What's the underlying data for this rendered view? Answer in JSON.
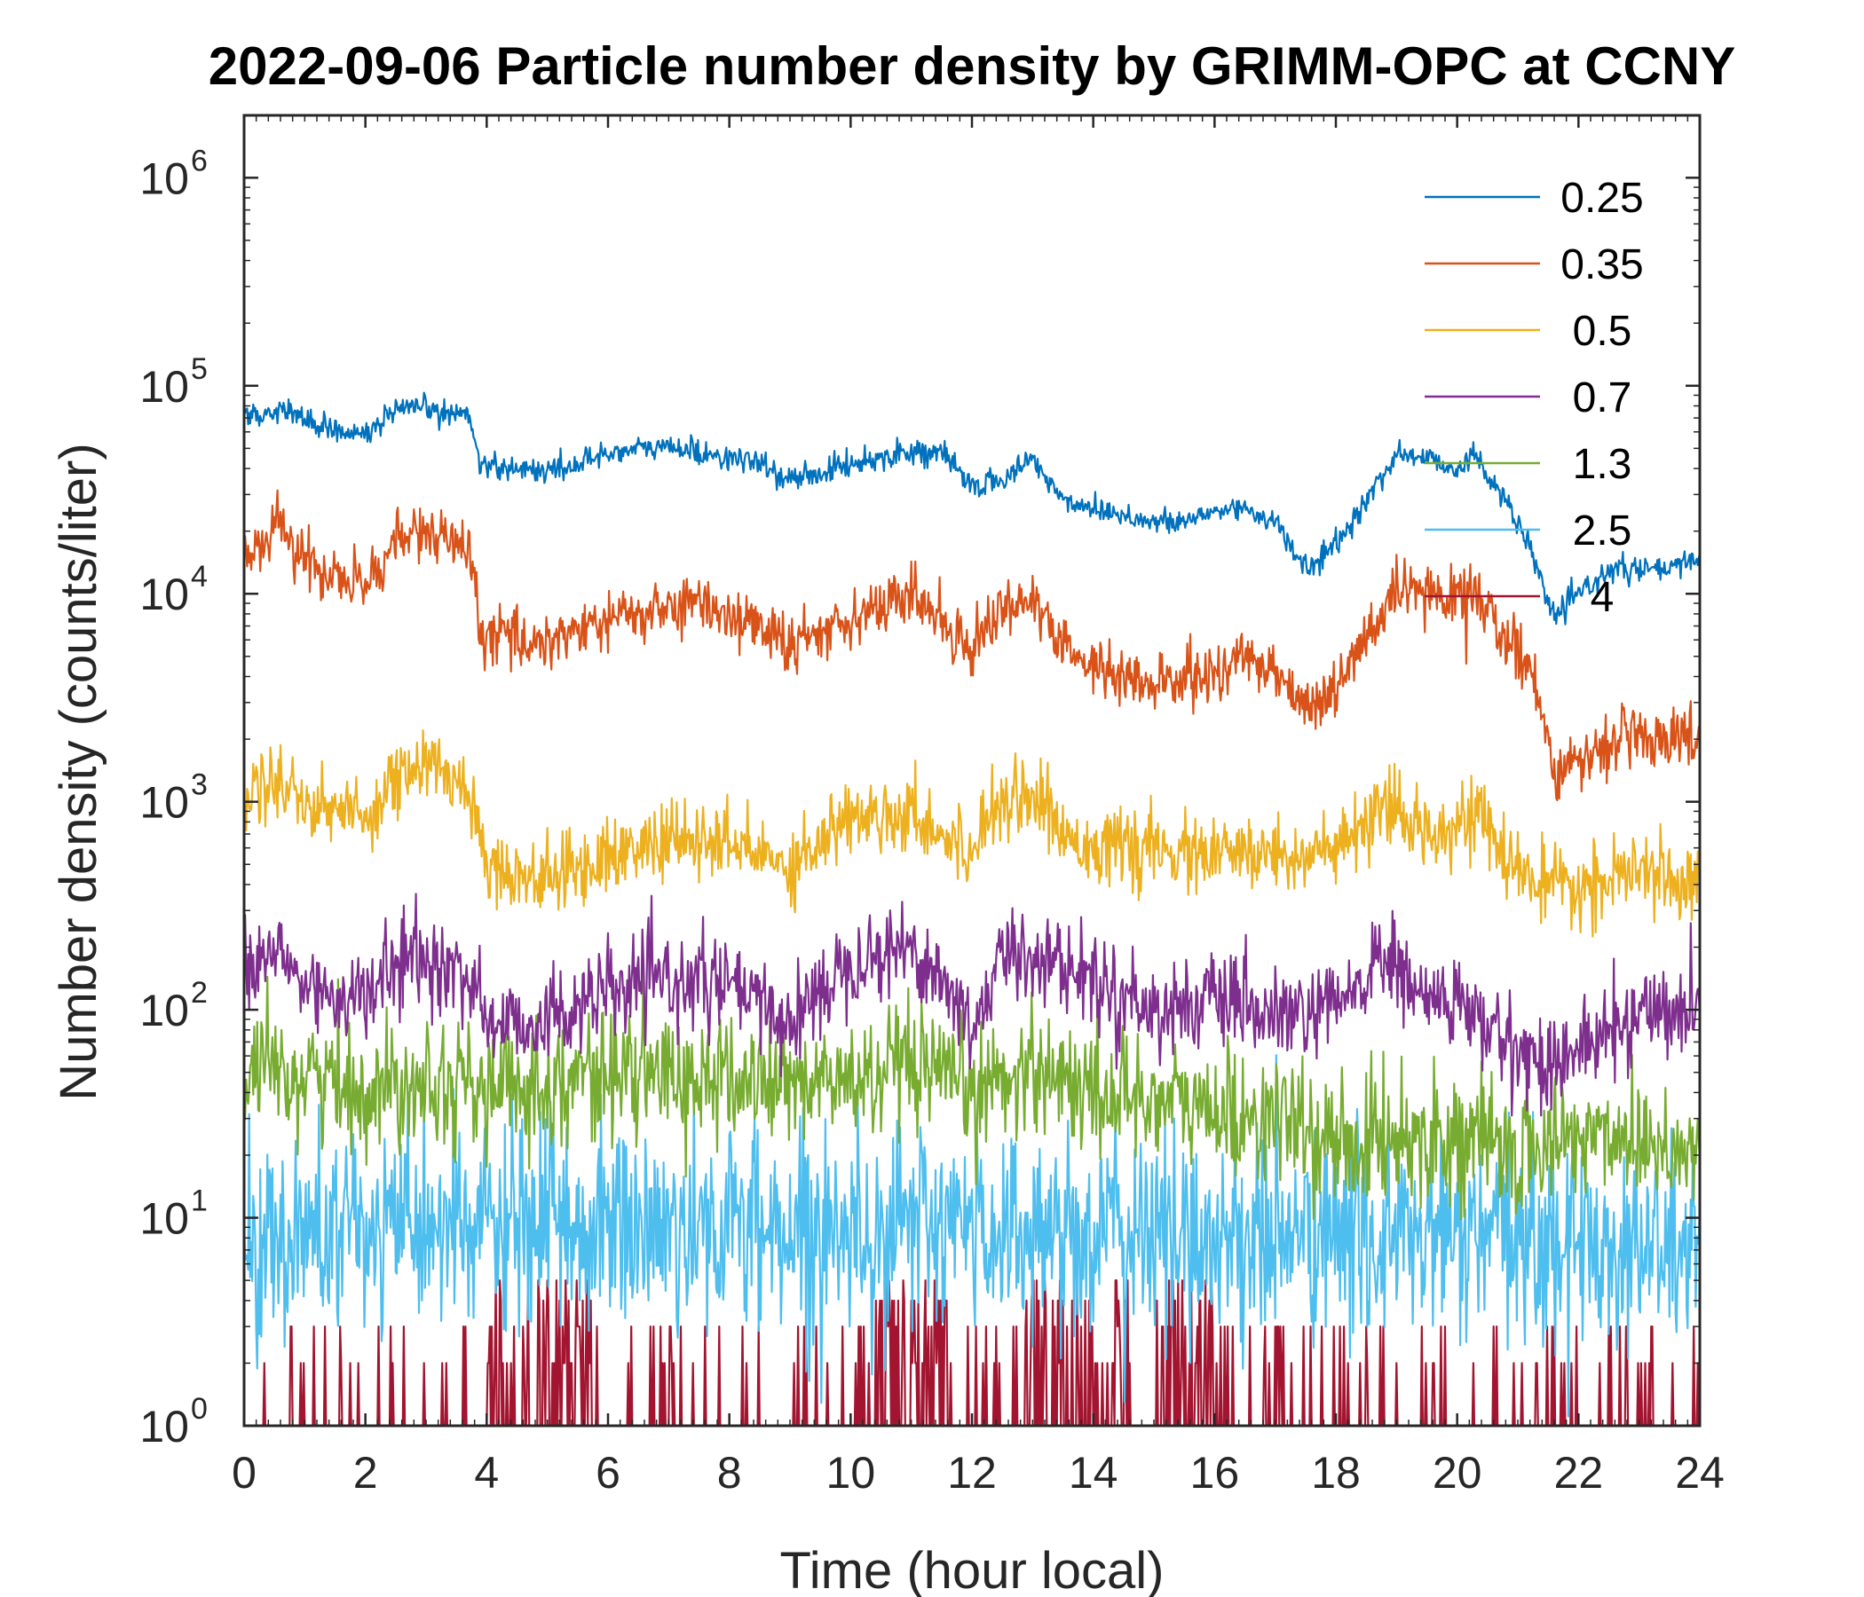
{
  "chart_data": {
    "type": "line",
    "title": "2022-09-06 Particle number density by GRIMM-OPC at CCNY",
    "xlabel": "Time (hour local)",
    "ylabel": "Number density (counts/liter)",
    "xlim": [
      0,
      24
    ],
    "ylim_log10": [
      0,
      6.3
    ],
    "yscale": "log",
    "x_ticks": [
      "0",
      "2",
      "4",
      "6",
      "8",
      "10",
      "12",
      "14",
      "16",
      "18",
      "20",
      "22",
      "24"
    ],
    "y_ticks": [
      {
        "base": "10",
        "exp": "0"
      },
      {
        "base": "10",
        "exp": "1"
      },
      {
        "base": "10",
        "exp": "2"
      },
      {
        "base": "10",
        "exp": "3"
      },
      {
        "base": "10",
        "exp": "4"
      },
      {
        "base": "10",
        "exp": "5"
      },
      {
        "base": "10",
        "exp": "6"
      }
    ],
    "legend_position": "top-right",
    "series": [
      {
        "name": "0.25",
        "color": "#0072BD",
        "noise": 0.03,
        "x": [
          0,
          0.3,
          0.6,
          1,
          1.5,
          2,
          2.5,
          3,
          3.5,
          3.7,
          3.9,
          4.5,
          5,
          5.5,
          6,
          7,
          8,
          8.5,
          9,
          10,
          11,
          11.5,
          12,
          12.5,
          13,
          13.5,
          14,
          14.5,
          15,
          15.5,
          16,
          16.5,
          17,
          17.5,
          18,
          18.5,
          19,
          19.5,
          20,
          20.3,
          20.8,
          21.3,
          21.6,
          22,
          22.5,
          23,
          23.5,
          24
        ],
        "y": [
          75000,
          70000,
          80000,
          68000,
          62000,
          58000,
          75000,
          78000,
          72000,
          75000,
          42000,
          40000,
          39000,
          42000,
          48000,
          51000,
          45000,
          42000,
          35000,
          42000,
          49000,
          47000,
          33000,
          35000,
          45000,
          28000,
          26000,
          24000,
          22000,
          22000,
          25000,
          26000,
          22000,
          13000,
          17000,
          28000,
          47000,
          45000,
          40000,
          46000,
          28000,
          14000,
          7500,
          10000,
          13000,
          13000,
          13000,
          15000
        ]
      },
      {
        "name": "0.35",
        "color": "#D95319",
        "noise": 0.07,
        "x": [
          0,
          0.3,
          0.6,
          1,
          1.5,
          2,
          2.5,
          3,
          3.5,
          3.7,
          3.9,
          4.5,
          5,
          6,
          7,
          7.5,
          8,
          8.5,
          9,
          10,
          10.5,
          11,
          11.5,
          12,
          12.5,
          13,
          13.5,
          14,
          14.5,
          15,
          15.5,
          16,
          16.5,
          17,
          17.5,
          18,
          18.5,
          19,
          19.5,
          20,
          20.3,
          20.8,
          21.3,
          21.6,
          22,
          22.5,
          23,
          23.5,
          24
        ],
        "y": [
          16000,
          17000,
          22000,
          14000,
          12000,
          11000,
          18000,
          20000,
          17000,
          16000,
          6500,
          6000,
          6000,
          7500,
          8500,
          9000,
          8000,
          7000,
          5500,
          8000,
          8500,
          10000,
          7500,
          5500,
          9000,
          9000,
          5500,
          4500,
          4000,
          3500,
          4000,
          4000,
          5000,
          4500,
          2800,
          3500,
          6000,
          10000,
          10000,
          9500,
          10500,
          6000,
          4000,
          1400,
          1500,
          2000,
          2000,
          2000,
          2200
        ]
      },
      {
        "name": "0.5",
        "color": "#EDB120",
        "noise": 0.09,
        "x": [
          0,
          0.6,
          1,
          2,
          2.5,
          3,
          3.5,
          3.8,
          4,
          5,
          6,
          7,
          8,
          9,
          10,
          11,
          12,
          12.3,
          13,
          13.5,
          14,
          15,
          16,
          17,
          18,
          18.8,
          19.5,
          20.3,
          20.8,
          21.5,
          22,
          23,
          24
        ],
        "y": [
          1100,
          1300,
          1000,
          850,
          1300,
          1500,
          1300,
          1000,
          500,
          420,
          550,
          650,
          620,
          500,
          850,
          900,
          550,
          1000,
          1100,
          700,
          620,
          570,
          550,
          560,
          570,
          900,
          720,
          900,
          520,
          380,
          380,
          450,
          420
        ]
      },
      {
        "name": "0.7",
        "color": "#7E2F8E",
        "noise": 0.11,
        "x": [
          0,
          0.6,
          1,
          2,
          2.5,
          3,
          3.5,
          3.8,
          4,
          5,
          6,
          7,
          8,
          9,
          10,
          11,
          11.5,
          12,
          12.5,
          13,
          14,
          15,
          16,
          17,
          18,
          18.8,
          19.5,
          20,
          20.5,
          21,
          21.5,
          22,
          22.5,
          23,
          24
        ],
        "y": [
          150,
          190,
          130,
          110,
          170,
          170,
          150,
          140,
          85,
          90,
          120,
          140,
          130,
          85,
          180,
          200,
          140,
          80,
          180,
          190,
          140,
          100,
          110,
          90,
          100,
          180,
          110,
          110,
          80,
          65,
          55,
          65,
          75,
          100,
          100
        ]
      },
      {
        "name": "1.3",
        "color": "#77AC30",
        "noise": 0.15,
        "x": [
          0,
          1,
          2,
          3,
          4,
          5,
          6,
          8,
          10,
          11,
          12,
          13,
          14,
          15,
          16,
          17,
          18,
          19,
          20,
          21,
          22,
          23,
          24
        ],
        "y": [
          45,
          50,
          40,
          50,
          40,
          45,
          50,
          45,
          45,
          50,
          40,
          55,
          40,
          38,
          32,
          30,
          22,
          25,
          25,
          20,
          25,
          25,
          20
        ]
      },
      {
        "name": "2.5",
        "color": "#4DBEEE",
        "noise": 0.25,
        "x": [
          0,
          4,
          8,
          12,
          16,
          20,
          24
        ],
        "y": [
          8,
          9,
          9,
          9,
          8,
          8,
          7
        ]
      },
      {
        "name": "4",
        "color": "#A2142F",
        "noise": 0,
        "x": [
          0,
          24
        ],
        "y": [
          1,
          1
        ]
      }
    ]
  }
}
